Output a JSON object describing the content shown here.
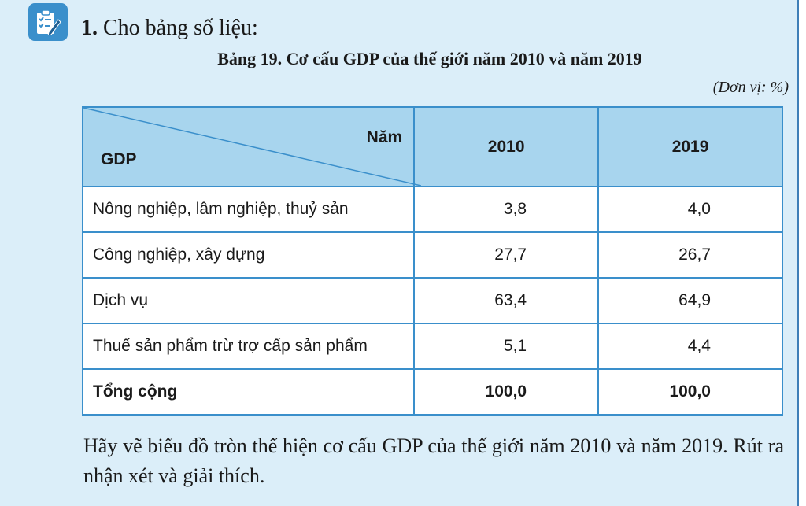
{
  "exercise": {
    "number": "1.",
    "prompt": "Cho bảng số liệu:"
  },
  "table": {
    "caption": "Bảng 19. Cơ cấu GDP của thế giới năm 2010 và năm 2019",
    "unit": "(Đơn vị: %)",
    "header": {
      "corner_top": "Năm",
      "corner_bottom": "GDP",
      "years": [
        "2010",
        "2019"
      ]
    },
    "rows": [
      {
        "label": "Nông nghiệp, lâm nghiệp, thuỷ sản",
        "v2010": "3,8",
        "v2019": "4,0"
      },
      {
        "label": "Công nghiệp, xây dựng",
        "v2010": "27,7",
        "v2019": "26,7"
      },
      {
        "label": "Dịch vụ",
        "v2010": "63,4",
        "v2019": "64,9"
      },
      {
        "label": "Thuế sản phẩm trừ trợ cấp sản phẩm",
        "v2010": "5,1",
        "v2019": "4,4"
      }
    ],
    "total": {
      "label": "Tổng cộng",
      "v2010": "100,0",
      "v2019": "100,0"
    }
  },
  "question": "Hãy vẽ biểu đồ tròn thể hiện cơ cấu GDP của thế giới năm 2010 và năm 2019. Rút ra nhận xét và giải thích.",
  "colors": {
    "panel": "#dbeef9",
    "accent": "#3a8fcb",
    "header": "#a8d5ee"
  },
  "icons": {
    "exercise": "checklist-pencil-icon"
  }
}
